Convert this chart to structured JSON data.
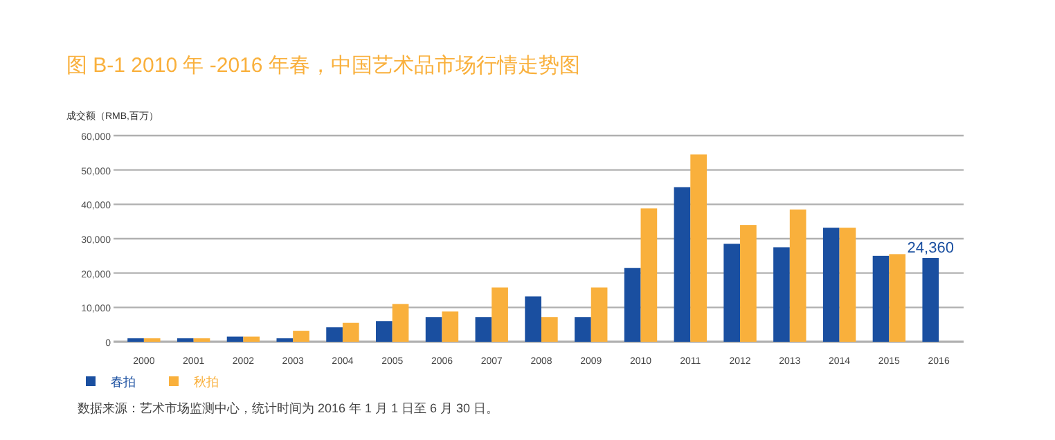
{
  "chart_data": {
    "type": "bar",
    "title": "图 B-1  2010 年 -2016 年春，中国艺术品市场行情走势图",
    "ylabel": "成交额（RMB,百万）",
    "categories": [
      "2000",
      "2001",
      "2002",
      "2003",
      "2004",
      "2005",
      "2006",
      "2007",
      "2008",
      "2009",
      "2010",
      "2011",
      "2012",
      "2013",
      "2014",
      "2015",
      "2016"
    ],
    "series": [
      {
        "name": "春拍",
        "color": "#1a4fa0",
        "values": [
          1000,
          1000,
          1500,
          1000,
          4200,
          6000,
          7200,
          7200,
          13200,
          7200,
          21500,
          45000,
          28500,
          27500,
          33200,
          25000,
          24360
        ],
        "value_labels": [
          null,
          null,
          null,
          null,
          null,
          null,
          null,
          null,
          null,
          null,
          null,
          null,
          null,
          null,
          null,
          null,
          "24,360"
        ]
      },
      {
        "name": "秋拍",
        "color": "#f9b03c",
        "values": [
          1000,
          1000,
          1500,
          3200,
          5500,
          11000,
          8800,
          15800,
          7200,
          15800,
          38800,
          54500,
          34000,
          38500,
          33200,
          25500,
          null
        ]
      }
    ],
    "ylim": [
      0,
      60000
    ],
    "yticks": [
      {
        "value": 0,
        "label": "0"
      },
      {
        "value": 10000,
        "label": "10,000"
      },
      {
        "value": 20000,
        "label": "20,000"
      },
      {
        "value": 30000,
        "label": "30,000"
      },
      {
        "value": 40000,
        "label": "40,000"
      },
      {
        "value": 50000,
        "label": "50,000"
      },
      {
        "value": 60000,
        "label": "60,000"
      }
    ],
    "grid": "y",
    "legend": "bottom left",
    "annotations": [
      "数据来源：艺术市场监测中心，统计时间为 2016 年 1 月 1 日至 6 月 30 日。"
    ]
  }
}
